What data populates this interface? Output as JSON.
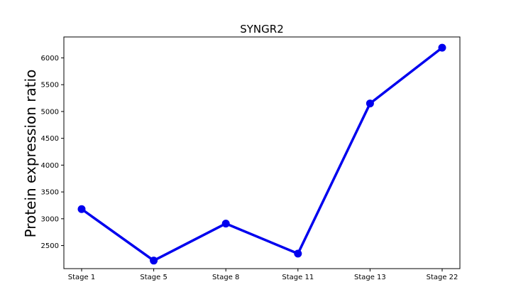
{
  "chart_data": {
    "type": "line",
    "title": "SYNGR2",
    "xlabel": "",
    "ylabel": "Protein expression ratio",
    "categories": [
      "Stage 1",
      "Stage 5",
      "Stage 8",
      "Stage 11",
      "Stage 13",
      "Stage 22"
    ],
    "series": [
      {
        "values": [
          3180,
          2220,
          2910,
          2350,
          5150,
          6190
        ],
        "color": "#0000ee"
      }
    ],
    "ylim": [
      2070,
      6390
    ],
    "yticks": [
      2500,
      3000,
      3500,
      4000,
      4500,
      5000,
      5500,
      6000
    ],
    "grid": false,
    "legend": "none"
  }
}
